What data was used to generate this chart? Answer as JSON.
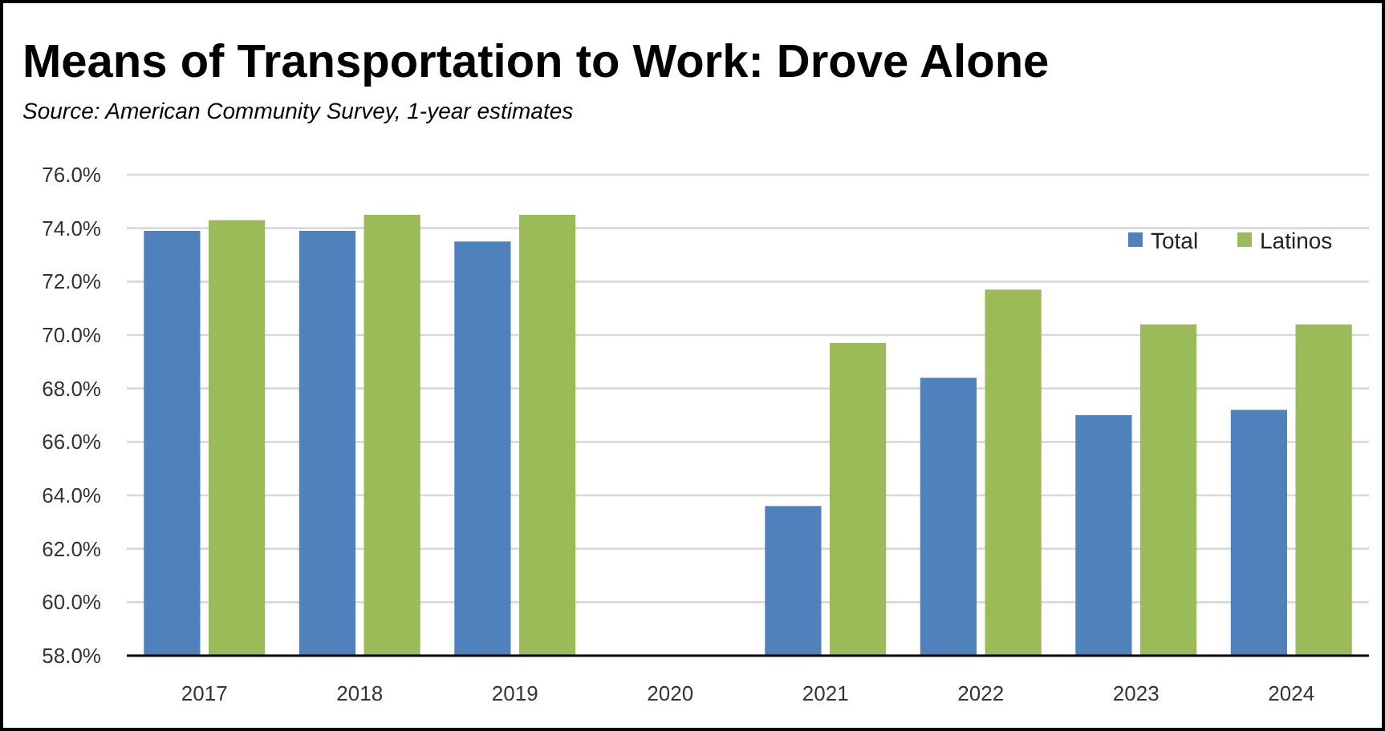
{
  "chart_data": {
    "type": "bar",
    "title": "Means of Transportation to Work:  Drove Alone",
    "subtitle": "Source:  American Community Survey, 1-year estimates",
    "categories": [
      "2017",
      "2018",
      "2019",
      "2020",
      "2021",
      "2022",
      "2023",
      "2024"
    ],
    "series": [
      {
        "name": "Total",
        "color": "#4f81bd",
        "values": [
          73.9,
          73.9,
          73.5,
          null,
          63.6,
          68.4,
          67.0,
          67.2
        ]
      },
      {
        "name": "Latinos",
        "color": "#9bbb59",
        "values": [
          74.3,
          74.5,
          74.5,
          null,
          69.7,
          71.7,
          70.4,
          70.4
        ]
      }
    ],
    "ylim": [
      58,
      76
    ],
    "yticks": [
      {
        "value": 58,
        "label": "58.0%"
      },
      {
        "value": 60,
        "label": "60.0%"
      },
      {
        "value": 62,
        "label": "62.0%"
      },
      {
        "value": 64,
        "label": "64.0%"
      },
      {
        "value": 66,
        "label": "66.0%"
      },
      {
        "value": 68,
        "label": "68.0%"
      },
      {
        "value": 70,
        "label": "70.0%"
      },
      {
        "value": 72,
        "label": "72.0%"
      },
      {
        "value": 74,
        "label": "74.0%"
      },
      {
        "value": 76,
        "label": "76.0%"
      }
    ],
    "grid": "y",
    "legend": "top right"
  }
}
